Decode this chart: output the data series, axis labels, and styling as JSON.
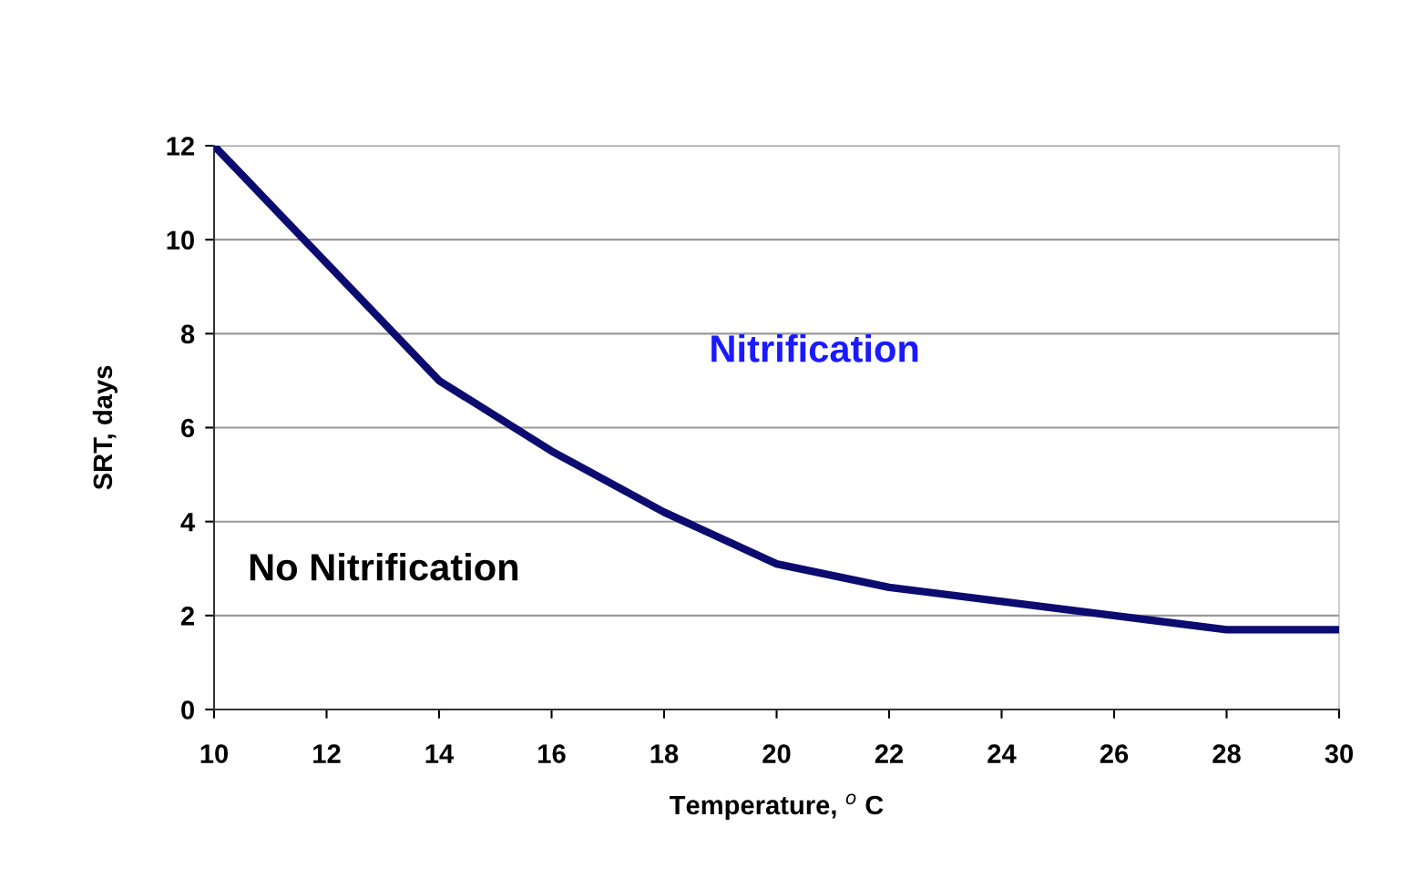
{
  "chart_data": {
    "type": "line",
    "xlabel": "Temperature, $^{o}$ C",
    "ylabel": "SRT, days",
    "x": [
      10,
      12,
      14,
      16,
      18,
      20,
      22,
      24,
      26,
      28,
      30
    ],
    "series": [
      {
        "color": "#0c0c70",
        "values": [
          12,
          9.5,
          7,
          5.5,
          4.2,
          3.1,
          2.6,
          2.3,
          2.0,
          1.7,
          1.7
        ]
      }
    ],
    "xlim": [
      10,
      30
    ],
    "xticks": [
      10,
      12,
      14,
      16,
      18,
      20,
      22,
      24,
      26,
      28,
      30
    ],
    "ylim": [
      0,
      12
    ],
    "yticks": [
      0,
      2,
      4,
      6,
      8,
      10,
      12
    ],
    "grid": "y",
    "marker": "none",
    "line_style": "solid",
    "annotations": [
      "Nitrification",
      "No Nitrification"
    ]
  }
}
